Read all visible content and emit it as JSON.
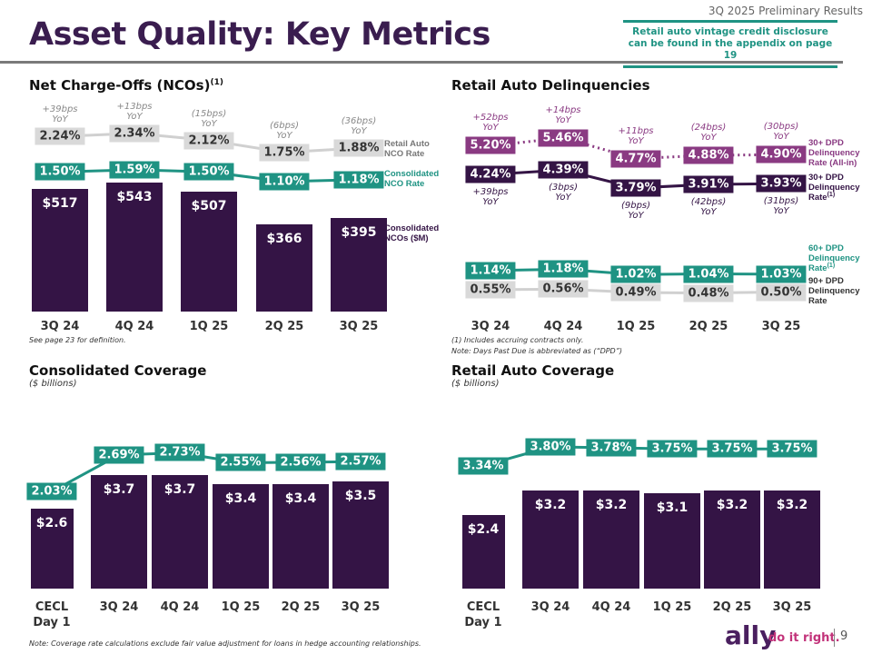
{
  "header": {
    "subtitle": "3Q 2025 Preliminary Results",
    "title": "Asset Quality: Key Metrics",
    "callout": "Retail auto vintage credit disclosure can be found in the appendix on page  19"
  },
  "colors": {
    "purple": "#341445",
    "teal": "#1f9383",
    "magenta": "#8a3a82",
    "gray": "#d9d9d9"
  },
  "nco": {
    "title": "Net Charge-Offs (NCOs)",
    "title_sup": "(1)",
    "footnote": "See page 23 for definition.",
    "categories": [
      "3Q 24",
      "4Q 24",
      "1Q 25",
      "2Q 25",
      "3Q 25"
    ],
    "bars": {
      "label": "Consolidated NCOs ($M)",
      "values": [
        517,
        543,
        507,
        366,
        395
      ],
      "labels": [
        "$517",
        "$543",
        "$507",
        "$366",
        "$395"
      ]
    },
    "retail_rate": {
      "label": "Retail Auto NCO Rate",
      "values": [
        2.24,
        2.34,
        2.12,
        1.75,
        1.88
      ],
      "labels": [
        "2.24%",
        "2.34%",
        "2.12%",
        "1.75%",
        "1.88%"
      ],
      "yoy": [
        "+39bps\nYoY",
        "+13bps\nYoY",
        "(15bps)\nYoY",
        "(6bps)\nYoY",
        "(36bps)\nYoY"
      ]
    },
    "cons_rate": {
      "label": "Consolidated NCO Rate",
      "values": [
        1.5,
        1.59,
        1.5,
        1.1,
        1.18
      ],
      "labels": [
        "1.50%",
        "1.59%",
        "1.50%",
        "1.10%",
        "1.18%"
      ]
    }
  },
  "delinq": {
    "title": "Retail Auto Delinquencies",
    "footnote1": "(1) Includes accruing contracts only.",
    "footnote2": "Note: Days Past Due is abbreviated as (“DPD”)",
    "categories": [
      "3Q 24",
      "4Q 24",
      "1Q 25",
      "2Q 25",
      "3Q 25"
    ],
    "allin": {
      "label": "30+ DPD Delinquency Rate (All-in)",
      "values": [
        5.2,
        5.46,
        4.77,
        4.88,
        4.9
      ],
      "labels": [
        "5.20%",
        "5.46%",
        "4.77%",
        "4.88%",
        "4.90%"
      ],
      "yoy": [
        "+52bps\nYoY",
        "+14bps\nYoY",
        "+11bps\nYoY",
        "(24bps)\nYoY",
        "(30bps)\nYoY"
      ]
    },
    "dpd30": {
      "label": "30+ DPD Delinquency Rate",
      "label_sup": "(1)",
      "values": [
        4.24,
        4.39,
        3.79,
        3.91,
        3.93
      ],
      "labels": [
        "4.24%",
        "4.39%",
        "3.79%",
        "3.91%",
        "3.93%"
      ],
      "yoy": [
        "+39bps\nYoY",
        "(3bps)\nYoY",
        "(9bps)\nYoY",
        "(42bps)\nYoY",
        "(31bps)\nYoY"
      ]
    },
    "dpd60": {
      "label": "60+ DPD Delinquency Rate",
      "label_sup": "(1)",
      "values": [
        1.14,
        1.18,
        1.02,
        1.04,
        1.03
      ],
      "labels": [
        "1.14%",
        "1.18%",
        "1.02%",
        "1.04%",
        "1.03%"
      ]
    },
    "dpd90": {
      "label": "90+ DPD Delinquency Rate",
      "values": [
        0.55,
        0.56,
        0.49,
        0.48,
        0.5
      ],
      "labels": [
        "0.55%",
        "0.56%",
        "0.49%",
        "0.48%",
        "0.50%"
      ]
    }
  },
  "cons_cov": {
    "title": "Consolidated Coverage",
    "subtitle": "($ billions)",
    "categories": [
      "CECL\nDay 1",
      "3Q 24",
      "4Q 24",
      "1Q 25",
      "2Q 25",
      "3Q 25"
    ],
    "bars": {
      "values": [
        2.6,
        3.7,
        3.7,
        3.4,
        3.4,
        3.5
      ],
      "labels": [
        "$2.6",
        "$3.7",
        "$3.7",
        "$3.4",
        "$3.4",
        "$3.5"
      ]
    },
    "rate": {
      "values": [
        2.03,
        2.69,
        2.73,
        2.55,
        2.56,
        2.57
      ],
      "labels": [
        "2.03%",
        "2.69%",
        "2.73%",
        "2.55%",
        "2.56%",
        "2.57%"
      ]
    }
  },
  "ra_cov": {
    "title": "Retail Auto Coverage",
    "subtitle": "($ billions)",
    "categories": [
      "CECL\nDay 1",
      "3Q 24",
      "4Q 24",
      "1Q 25",
      "2Q 25",
      "3Q 25"
    ],
    "bars": {
      "values": [
        2.4,
        3.2,
        3.2,
        3.1,
        3.2,
        3.2
      ],
      "labels": [
        "$2.4",
        "$3.2",
        "$3.2",
        "$3.1",
        "$3.2",
        "$3.2"
      ]
    },
    "rate": {
      "values": [
        3.34,
        3.8,
        3.78,
        3.75,
        3.75,
        3.75
      ],
      "labels": [
        "3.34%",
        "3.80%",
        "3.78%",
        "3.75%",
        "3.75%",
        "3.75%"
      ]
    }
  },
  "footer": {
    "note": "Note: Coverage rate calculations exclude fair value adjustment for loans in hedge accounting relationships.",
    "logo": "ally",
    "tagline": "do it right.",
    "page": "9"
  }
}
